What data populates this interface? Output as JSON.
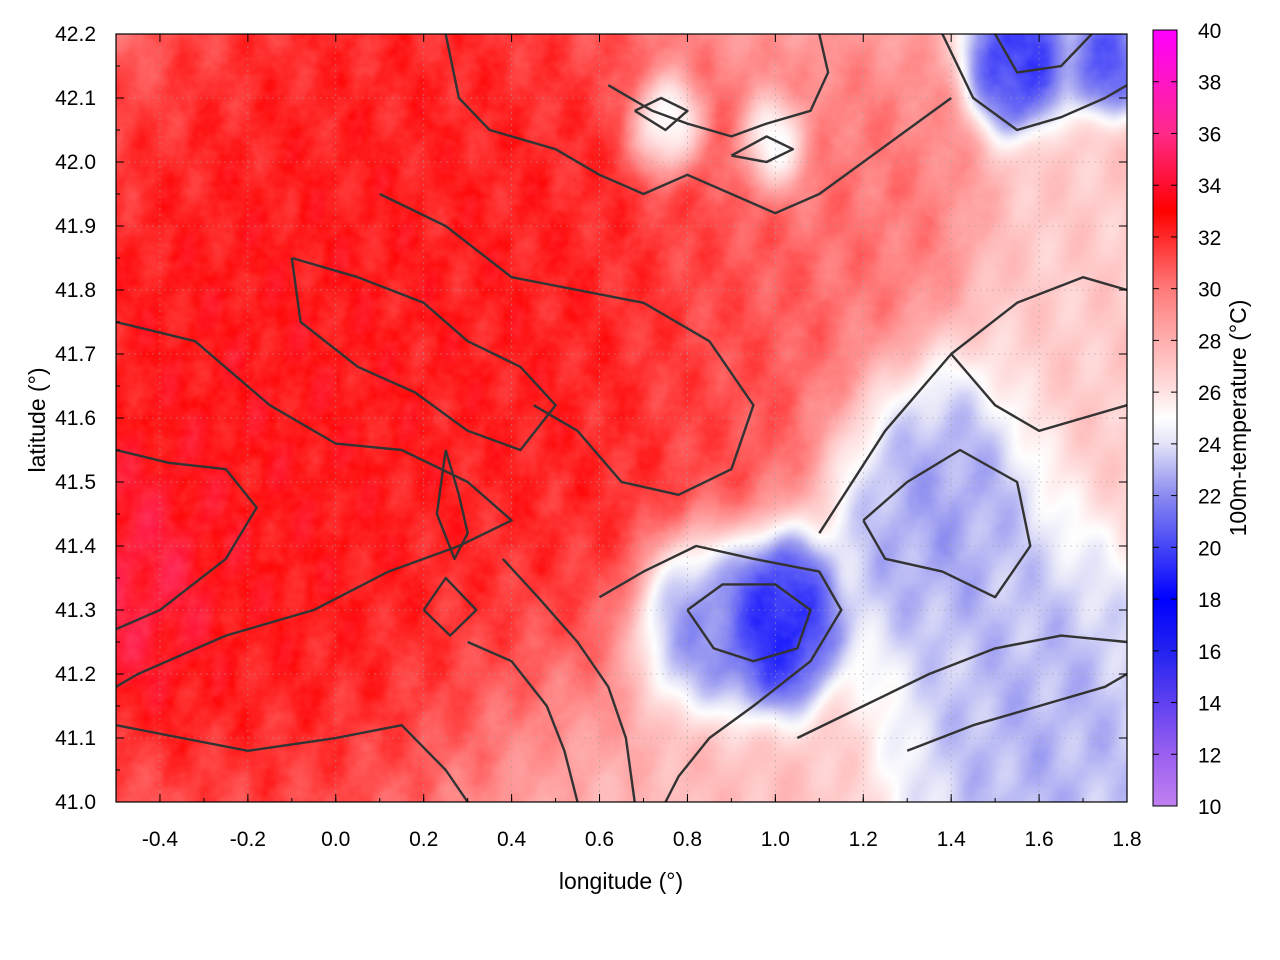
{
  "chart_data": {
    "type": "heatmap",
    "xlabel": "longitude (°)",
    "ylabel": "latitude (°)",
    "colorbar_label": "100m-temperature (°C)",
    "xlim": [
      -0.5,
      1.8
    ],
    "ylim": [
      41.0,
      42.2
    ],
    "clim": [
      10,
      40
    ],
    "x_ticks": [
      "-0.4",
      "-0.2",
      "0.0",
      "0.2",
      "0.4",
      "0.6",
      "0.8",
      "1.0",
      "1.2",
      "1.4",
      "1.6",
      "1.8"
    ],
    "x_tick_values": [
      -0.4,
      -0.2,
      0.0,
      0.2,
      0.4,
      0.6,
      0.8,
      1.0,
      1.2,
      1.4,
      1.6,
      1.8
    ],
    "y_ticks": [
      "41.0",
      "41.1",
      "41.2",
      "41.3",
      "41.4",
      "41.5",
      "41.6",
      "41.7",
      "41.8",
      "41.9",
      "42.0",
      "42.1",
      "42.2"
    ],
    "y_tick_values": [
      41.0,
      41.1,
      41.2,
      41.3,
      41.4,
      41.5,
      41.6,
      41.7,
      41.8,
      41.9,
      42.0,
      42.1,
      42.2
    ],
    "colorbar_ticks": [
      "10",
      "12",
      "14",
      "16",
      "18",
      "20",
      "22",
      "24",
      "26",
      "28",
      "30",
      "32",
      "34",
      "36",
      "38",
      "40"
    ],
    "colorbar_tick_values": [
      10,
      12,
      14,
      16,
      18,
      20,
      22,
      24,
      26,
      28,
      30,
      32,
      34,
      36,
      38,
      40
    ],
    "colormap": [
      {
        "value": 10,
        "color": "#c080f0"
      },
      {
        "value": 12,
        "color": "#9a5ff0"
      },
      {
        "value": 16,
        "color": "#2222f0"
      },
      {
        "value": 18,
        "color": "#0000ff"
      },
      {
        "value": 22,
        "color": "#8a8af0"
      },
      {
        "value": 24,
        "color": "#e2e2f8"
      },
      {
        "value": 25,
        "color": "#ffffff"
      },
      {
        "value": 26,
        "color": "#ffe2e2"
      },
      {
        "value": 30,
        "color": "#ff7a7a"
      },
      {
        "value": 33,
        "color": "#ff0000"
      },
      {
        "value": 36,
        "color": "#ff2a8a"
      },
      {
        "value": 40,
        "color": "#ff00ff"
      }
    ],
    "grid": true,
    "field_centers": [
      {
        "lon": -0.2,
        "lat": 41.55,
        "temp": 33.5,
        "spread": 0.45
      },
      {
        "lon": -0.45,
        "lat": 41.35,
        "temp": 35.0,
        "spread": 0.15
      },
      {
        "lon": 0.15,
        "lat": 41.9,
        "temp": 33.0,
        "spread": 0.4
      },
      {
        "lon": 0.55,
        "lat": 41.7,
        "temp": 33.0,
        "spread": 0.3
      },
      {
        "lon": 0.9,
        "lat": 41.75,
        "temp": 31.5,
        "spread": 0.25
      },
      {
        "lon": 1.0,
        "lat": 41.3,
        "temp": 17.5,
        "spread": 0.1
      },
      {
        "lon": 0.82,
        "lat": 41.3,
        "temp": 21.0,
        "spread": 0.1
      },
      {
        "lon": 1.35,
        "lat": 41.48,
        "temp": 22.0,
        "spread": 0.18
      },
      {
        "lon": 1.6,
        "lat": 41.1,
        "temp": 22.5,
        "spread": 0.22
      },
      {
        "lon": 1.55,
        "lat": 42.15,
        "temp": 18.5,
        "spread": 0.08
      },
      {
        "lon": 1.75,
        "lat": 42.15,
        "temp": 19.5,
        "spread": 0.06
      },
      {
        "lon": 0.75,
        "lat": 42.05,
        "temp": 22.0,
        "spread": 0.06
      },
      {
        "lon": 1.0,
        "lat": 42.02,
        "temp": 22.0,
        "spread": 0.06
      },
      {
        "lon": 1.7,
        "lat": 41.8,
        "temp": 27.0,
        "spread": 0.2
      },
      {
        "lon": 1.2,
        "lat": 41.9,
        "temp": 30.5,
        "spread": 0.2
      }
    ],
    "contour_lines": [
      [
        [
          -0.5,
          41.55
        ],
        [
          -0.38,
          41.53
        ],
        [
          -0.25,
          41.52
        ],
        [
          -0.18,
          41.46
        ],
        [
          -0.25,
          41.38
        ],
        [
          -0.4,
          41.3
        ],
        [
          -0.5,
          41.27
        ]
      ],
      [
        [
          -0.5,
          41.75
        ],
        [
          -0.32,
          41.72
        ],
        [
          -0.15,
          41.62
        ],
        [
          0.0,
          41.56
        ],
        [
          0.15,
          41.55
        ],
        [
          0.3,
          41.5
        ],
        [
          0.4,
          41.44
        ],
        [
          0.28,
          41.4
        ],
        [
          0.12,
          41.36
        ],
        [
          -0.05,
          41.3
        ],
        [
          -0.25,
          41.26
        ],
        [
          -0.45,
          41.2
        ],
        [
          -0.5,
          41.18
        ]
      ],
      [
        [
          -0.1,
          41.85
        ],
        [
          0.05,
          41.82
        ],
        [
          0.2,
          41.78
        ],
        [
          0.3,
          41.72
        ],
        [
          0.42,
          41.68
        ],
        [
          0.5,
          41.62
        ],
        [
          0.42,
          41.55
        ],
        [
          0.3,
          41.58
        ],
        [
          0.18,
          41.64
        ],
        [
          0.05,
          41.68
        ],
        [
          -0.08,
          41.75
        ],
        [
          -0.1,
          41.85
        ]
      ],
      [
        [
          0.1,
          41.95
        ],
        [
          0.25,
          41.9
        ],
        [
          0.4,
          41.82
        ],
        [
          0.55,
          41.8
        ],
        [
          0.7,
          41.78
        ],
        [
          0.85,
          41.72
        ],
        [
          0.95,
          41.62
        ],
        [
          0.9,
          41.52
        ],
        [
          0.78,
          41.48
        ],
        [
          0.65,
          41.5
        ],
        [
          0.55,
          41.58
        ],
        [
          0.45,
          41.62
        ]
      ],
      [
        [
          0.6,
          41.32
        ],
        [
          0.7,
          41.36
        ],
        [
          0.82,
          41.4
        ],
        [
          0.95,
          41.38
        ],
        [
          1.1,
          41.36
        ],
        [
          1.15,
          41.3
        ],
        [
          1.08,
          41.22
        ],
        [
          0.95,
          41.15
        ],
        [
          0.85,
          41.1
        ],
        [
          0.78,
          41.04
        ],
        [
          0.75,
          41.0
        ]
      ],
      [
        [
          0.8,
          41.3
        ],
        [
          0.88,
          41.34
        ],
        [
          1.0,
          41.34
        ],
        [
          1.08,
          41.3
        ],
        [
          1.05,
          41.24
        ],
        [
          0.95,
          41.22
        ],
        [
          0.86,
          41.24
        ],
        [
          0.8,
          41.3
        ]
      ],
      [
        [
          1.2,
          41.44
        ],
        [
          1.3,
          41.5
        ],
        [
          1.42,
          41.55
        ],
        [
          1.55,
          41.5
        ],
        [
          1.58,
          41.4
        ],
        [
          1.5,
          41.32
        ],
        [
          1.38,
          41.36
        ],
        [
          1.25,
          41.38
        ],
        [
          1.2,
          41.44
        ]
      ],
      [
        [
          1.1,
          41.42
        ],
        [
          1.25,
          41.58
        ],
        [
          1.4,
          41.7
        ],
        [
          1.55,
          41.78
        ],
        [
          1.7,
          41.82
        ],
        [
          1.8,
          41.8
        ]
      ],
      [
        [
          1.05,
          41.1
        ],
        [
          1.2,
          41.15
        ],
        [
          1.35,
          41.2
        ],
        [
          1.5,
          41.24
        ],
        [
          1.65,
          41.26
        ],
        [
          1.8,
          41.25
        ]
      ],
      [
        [
          1.3,
          41.08
        ],
        [
          1.45,
          41.12
        ],
        [
          1.6,
          41.15
        ],
        [
          1.75,
          41.18
        ],
        [
          1.8,
          41.2
        ]
      ],
      [
        [
          1.38,
          42.2
        ],
        [
          1.45,
          42.1
        ],
        [
          1.55,
          42.05
        ],
        [
          1.65,
          42.07
        ],
        [
          1.75,
          42.1
        ],
        [
          1.8,
          42.12
        ]
      ],
      [
        [
          1.5,
          42.2
        ],
        [
          1.55,
          42.14
        ],
        [
          1.65,
          42.15
        ],
        [
          1.72,
          42.2
        ]
      ],
      [
        [
          0.62,
          42.12
        ],
        [
          0.72,
          42.08
        ],
        [
          0.8,
          42.06
        ],
        [
          0.9,
          42.04
        ],
        [
          0.98,
          42.06
        ],
        [
          1.08,
          42.08
        ],
        [
          1.12,
          42.14
        ],
        [
          1.1,
          42.2
        ]
      ],
      [
        [
          0.68,
          42.08
        ],
        [
          0.75,
          42.05
        ],
        [
          0.8,
          42.08
        ],
        [
          0.74,
          42.1
        ],
        [
          0.68,
          42.08
        ]
      ],
      [
        [
          0.9,
          42.01
        ],
        [
          0.98,
          42.0
        ],
        [
          1.04,
          42.02
        ],
        [
          0.98,
          42.04
        ],
        [
          0.9,
          42.01
        ]
      ],
      [
        [
          0.25,
          42.2
        ],
        [
          0.28,
          42.1
        ],
        [
          0.35,
          42.05
        ],
        [
          0.5,
          42.02
        ],
        [
          0.6,
          41.98
        ],
        [
          0.7,
          41.95
        ],
        [
          0.8,
          41.98
        ],
        [
          0.9,
          41.95
        ],
        [
          1.0,
          41.92
        ],
        [
          1.1,
          41.95
        ],
        [
          1.2,
          42.0
        ],
        [
          1.3,
          42.05
        ],
        [
          1.4,
          42.1
        ]
      ],
      [
        [
          0.38,
          41.38
        ],
        [
          0.46,
          41.32
        ],
        [
          0.55,
          41.25
        ],
        [
          0.62,
          41.18
        ],
        [
          0.66,
          41.1
        ],
        [
          0.68,
          41.0
        ]
      ],
      [
        [
          0.3,
          41.25
        ],
        [
          0.4,
          41.22
        ],
        [
          0.48,
          41.15
        ],
        [
          0.52,
          41.08
        ],
        [
          0.55,
          41.0
        ]
      ],
      [
        [
          0.2,
          41.3
        ],
        [
          0.25,
          41.35
        ],
        [
          0.32,
          41.3
        ],
        [
          0.26,
          41.26
        ],
        [
          0.2,
          41.3
        ]
      ],
      [
        [
          -0.5,
          41.12
        ],
        [
          -0.35,
          41.1
        ],
        [
          -0.2,
          41.08
        ],
        [
          0.0,
          41.1
        ],
        [
          0.15,
          41.12
        ],
        [
          0.25,
          41.05
        ],
        [
          0.3,
          41.0
        ]
      ],
      [
        [
          0.25,
          41.55
        ],
        [
          0.28,
          41.48
        ],
        [
          0.3,
          41.42
        ],
        [
          0.27,
          41.38
        ],
        [
          0.23,
          41.45
        ],
        [
          0.25,
          41.55
        ]
      ],
      [
        [
          1.4,
          41.7
        ],
        [
          1.5,
          41.62
        ],
        [
          1.6,
          41.58
        ],
        [
          1.7,
          41.6
        ],
        [
          1.8,
          41.62
        ]
      ]
    ]
  }
}
